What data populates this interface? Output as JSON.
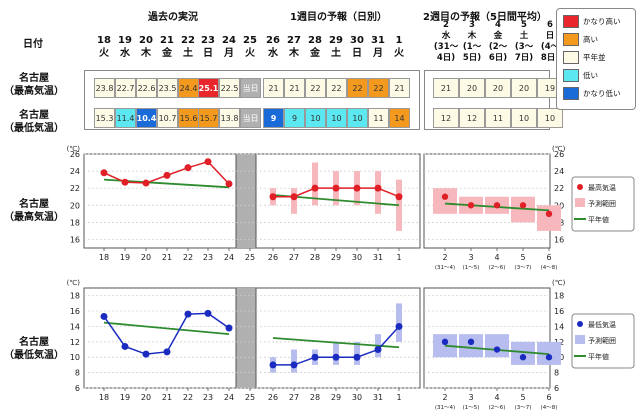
{
  "headers": {
    "past": "過去の実況",
    "week1": "1週目の予報（日別）",
    "week2": "2週目の予報（5日間平均）",
    "date_label": "日付"
  },
  "row_labels": {
    "max_table": [
      "名古屋",
      "（最高気温）"
    ],
    "min_table": [
      "名古屋",
      "（最低気温）"
    ],
    "max_chart": [
      "名古屋",
      "（最高気温）"
    ],
    "min_chart": [
      "名古屋",
      "（最低気温）"
    ]
  },
  "days": [
    {
      "d": "18",
      "w": "火"
    },
    {
      "d": "19",
      "w": "水"
    },
    {
      "d": "20",
      "w": "木"
    },
    {
      "d": "21",
      "w": "金"
    },
    {
      "d": "22",
      "w": "土"
    },
    {
      "d": "23",
      "w": "日"
    },
    {
      "d": "24",
      "w": "月"
    },
    {
      "d": "25",
      "w": "火"
    },
    {
      "d": "26",
      "w": "水"
    },
    {
      "d": "27",
      "w": "木"
    },
    {
      "d": "28",
      "w": "金"
    },
    {
      "d": "29",
      "w": "土"
    },
    {
      "d": "30",
      "w": "日"
    },
    {
      "d": "31",
      "w": "月"
    },
    {
      "d": "1",
      "w": "火"
    }
  ],
  "weeks": [
    {
      "d": "2",
      "w": "水",
      "r1": "(31～",
      "r2": "4日)"
    },
    {
      "d": "3",
      "w": "木",
      "r1": "(1～",
      "r2": "5日)"
    },
    {
      "d": "4",
      "w": "金",
      "r1": "(2～",
      "r2": "6日)"
    },
    {
      "d": "5",
      "w": "土",
      "r1": "(3～",
      "r2": "7日)"
    },
    {
      "d": "6",
      "w": "日",
      "r1": "(4～",
      "r2": "8日)"
    }
  ],
  "today_label": "当日",
  "max_cells": [
    "23.8",
    "22.7",
    "22.6",
    "23.5",
    "24.4",
    "25.1",
    "22.5",
    "当日",
    "21",
    "21",
    "22",
    "22",
    "22",
    "22",
    "21"
  ],
  "max_classes": [
    "n",
    "n",
    "n",
    "n",
    "high",
    "vhigh",
    "n",
    "today",
    "n",
    "n",
    "n",
    "n",
    "high",
    "high",
    "n"
  ],
  "min_cells": [
    "15.3",
    "11.4",
    "10.4",
    "10.7",
    "15.6",
    "15.7",
    "13.8",
    "当日",
    "9",
    "9",
    "10",
    "10",
    "10",
    "11",
    "14"
  ],
  "min_classes": [
    "n",
    "low",
    "vlow",
    "n",
    "high",
    "high",
    "n",
    "today",
    "vlow",
    "low",
    "low",
    "low",
    "low",
    "n",
    "high"
  ],
  "max_week_cells": [
    "21",
    "20",
    "20",
    "20",
    "19"
  ],
  "min_week_cells": [
    "12",
    "12",
    "11",
    "10",
    "10"
  ],
  "legend": {
    "items": [
      {
        "label": "かなり高い",
        "color": "#e8262b"
      },
      {
        "label": "高い",
        "color": "#f39a1e"
      },
      {
        "label": "平年並",
        "color": "#fdfbe6"
      },
      {
        "label": "低い",
        "color": "#5ce8f0"
      },
      {
        "label": "かなり低い",
        "color": "#1a6ad8"
      }
    ]
  },
  "chart_legend_max": [
    "最高気温",
    "予測範囲",
    "平年値"
  ],
  "chart_legend_min": [
    "最低気温",
    "予測範囲",
    "平年値"
  ],
  "unit": "(℃)",
  "colors": {
    "max": "#e01f26",
    "max_range": "#f7b8bd",
    "min": "#1a2bbf",
    "min_range": "#b8bdf0",
    "normal": "#2e8b2e",
    "gray": "#b0b0b0"
  },
  "chart_data": [
    {
      "type": "line",
      "title": "名古屋（最高気温）",
      "x_daily": [
        "18",
        "19",
        "20",
        "21",
        "22",
        "23",
        "24",
        "25",
        "26",
        "27",
        "28",
        "29",
        "30",
        "31",
        "1"
      ],
      "x_weekly": [
        "2",
        "3",
        "4",
        "5",
        "6"
      ],
      "x_weekly_sub": [
        "(31～4)",
        "(1～5)",
        "(2～6)",
        "(3～7)",
        "(4～8)"
      ],
      "ylim": [
        15,
        26
      ],
      "yticks": [
        16,
        18,
        20,
        22,
        24,
        26
      ],
      "observed": [
        23.8,
        22.7,
        22.6,
        23.5,
        24.4,
        25.1,
        22.5
      ],
      "forecast": [
        21,
        21,
        22,
        22,
        22,
        22,
        21
      ],
      "forecast_range": [
        [
          20,
          22
        ],
        [
          19,
          22
        ],
        [
          20,
          25
        ],
        [
          20,
          24
        ],
        [
          20,
          24
        ],
        [
          19,
          24
        ],
        [
          17,
          23
        ]
      ],
      "normal_past": [
        23.0,
        22.1
      ],
      "normal_fcst": [
        21.2,
        20.0
      ],
      "weekly": [
        21,
        20,
        20,
        20,
        19
      ],
      "weekly_range": [
        [
          19,
          22
        ],
        [
          19,
          21
        ],
        [
          19,
          21
        ],
        [
          18,
          21
        ],
        [
          17,
          20
        ]
      ],
      "normal_weekly": [
        20.2,
        19.4
      ]
    },
    {
      "type": "line",
      "title": "名古屋（最低気温）",
      "x_daily": [
        "18",
        "19",
        "20",
        "21",
        "22",
        "23",
        "24",
        "25",
        "26",
        "27",
        "28",
        "29",
        "30",
        "31",
        "1"
      ],
      "x_weekly": [
        "2",
        "3",
        "4",
        "5",
        "6"
      ],
      "x_weekly_sub": [
        "(31～4)",
        "(1～5)",
        "(2～6)",
        "(3～7)",
        "(4～8)"
      ],
      "ylim": [
        6,
        19
      ],
      "yticks": [
        6,
        8,
        10,
        12,
        14,
        16,
        18
      ],
      "observed": [
        15.3,
        11.4,
        10.4,
        10.7,
        15.6,
        15.7,
        13.8
      ],
      "forecast": [
        9,
        9,
        10,
        10,
        10,
        11,
        14
      ],
      "forecast_range": [
        [
          8,
          10
        ],
        [
          8,
          11
        ],
        [
          9,
          11
        ],
        [
          9,
          12
        ],
        [
          9,
          12
        ],
        [
          10,
          13
        ],
        [
          12,
          17
        ]
      ],
      "normal_past": [
        14.5,
        13.0
      ],
      "normal_fcst": [
        12.5,
        11.3
      ],
      "weekly": [
        12,
        12,
        11,
        10,
        10
      ],
      "weekly_range": [
        [
          10,
          13
        ],
        [
          10,
          13
        ],
        [
          10,
          13
        ],
        [
          9,
          12
        ],
        [
          9,
          12
        ]
      ],
      "normal_weekly": [
        11.5,
        10.4
      ]
    }
  ]
}
